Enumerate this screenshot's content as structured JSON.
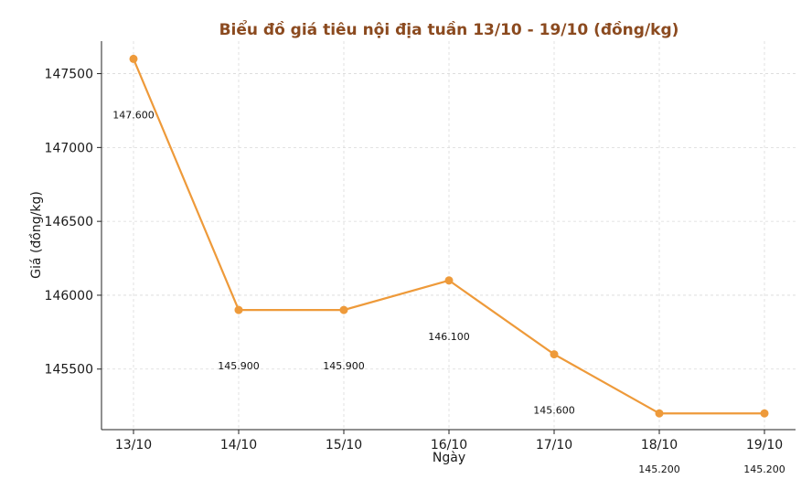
{
  "chart_data": {
    "type": "line",
    "title": "Biểu đồ giá tiêu nội địa tuần 13/10 - 19/10 (đồng/kg)",
    "xlabel": "Ngày",
    "ylabel": "Giá (đồng/kg)",
    "categories": [
      "13/10",
      "14/10",
      "15/10",
      "16/10",
      "17/10",
      "18/10",
      "19/10"
    ],
    "values": [
      147600,
      145900,
      145900,
      146100,
      145600,
      145200,
      145200
    ],
    "data_labels": [
      "147.600",
      "145.900",
      "145.900",
      "146.100",
      "145.600",
      "145.200",
      "145.200"
    ],
    "yticks": [
      145500,
      146000,
      146500,
      147000,
      147500
    ],
    "ylim": [
      145090,
      147720
    ],
    "grid": true,
    "line_color": "#ee9a3a"
  }
}
